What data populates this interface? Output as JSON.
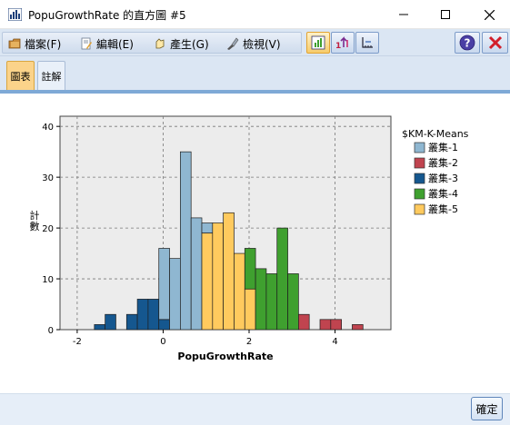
{
  "window": {
    "title": "PopuGrowthRate 的直方圖 #5"
  },
  "menu": {
    "file": "檔案(F)",
    "edit": "編輯(E)",
    "generate": "產生(G)",
    "view": "檢視(V)"
  },
  "tabs": {
    "chart": "圖表",
    "notes": "註解"
  },
  "footer": {
    "ok_label": "確定"
  },
  "colors": {
    "cluster_1": "#8fb7d1",
    "cluster_2": "#c0444f",
    "cluster_3": "#15578f",
    "cluster_4": "#3fa02f",
    "cluster_5": "#ffca5e",
    "plot_bg": "#ececec"
  },
  "chart_data": {
    "type": "bar",
    "xlabel": "PopuGrowthRate",
    "ylabel": "計數",
    "xlim": [
      -2.4,
      5.3
    ],
    "ylim": [
      0,
      42
    ],
    "x_ticks": [
      -2,
      0,
      2,
      4
    ],
    "y_ticks": [
      0,
      10,
      20,
      30,
      40
    ],
    "grid": true,
    "legend_title": "$KM-K-Means",
    "legend_position": "right",
    "bin_width": 0.25,
    "series": [
      {
        "name": "叢集-3",
        "color": "#15578f",
        "bins": [
          [
            -1.6,
            1
          ],
          [
            -1.35,
            3
          ],
          [
            -0.85,
            3
          ],
          [
            -0.6,
            6
          ],
          [
            -0.35,
            6
          ],
          [
            -0.1,
            2
          ]
        ]
      },
      {
        "name": "叢集-1",
        "color": "#8fb7d1",
        "bins": [
          [
            -0.1,
            16
          ],
          [
            0.15,
            14
          ],
          [
            0.4,
            35
          ],
          [
            0.65,
            22
          ],
          [
            0.9,
            21
          ]
        ]
      },
      {
        "name": "叢集-5",
        "color": "#ffca5e",
        "bins": [
          [
            0.9,
            19
          ],
          [
            1.15,
            21
          ],
          [
            1.4,
            23
          ],
          [
            1.65,
            15
          ],
          [
            1.9,
            8
          ]
        ]
      },
      {
        "name": "叢集-4",
        "color": "#3fa02f",
        "bins": [
          [
            1.9,
            16
          ],
          [
            2.15,
            12
          ],
          [
            2.4,
            11
          ],
          [
            2.65,
            20
          ],
          [
            2.9,
            11
          ]
        ]
      },
      {
        "name": "叢集-2",
        "color": "#c0444f",
        "bins": [
          [
            3.15,
            3
          ],
          [
            3.65,
            2
          ],
          [
            3.9,
            2
          ],
          [
            4.4,
            1
          ]
        ]
      }
    ],
    "stacked": [
      {
        "x": -0.1,
        "below": "叢集-3",
        "below_value": 2,
        "above": "叢集-1",
        "top": 16
      },
      {
        "x": 0.9,
        "below": "叢集-5",
        "below_value": 19,
        "above": "叢集-1",
        "top": 21
      },
      {
        "x": 1.9,
        "below": "叢集-5",
        "below_value": 8,
        "above": "叢集-4",
        "top": 16
      }
    ],
    "legend": [
      "叢集-1",
      "叢集-2",
      "叢集-3",
      "叢集-4",
      "叢集-5"
    ]
  }
}
